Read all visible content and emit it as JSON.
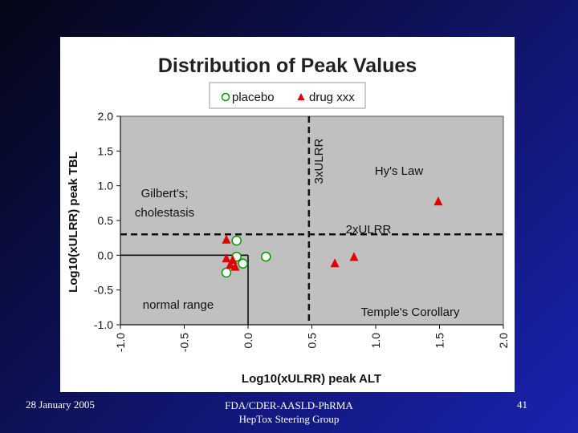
{
  "slide": {
    "footer_date": "28 January 2005",
    "footer_org_line1": "FDA/CDER-AASLD-PhRMA",
    "footer_org_line2": "HepTox Steering Group",
    "page_number": "41"
  },
  "colors": {
    "plot_bg": "#c0c0c0",
    "placebo": "#009900",
    "drug": "#e00000"
  },
  "chart_data": {
    "type": "scatter",
    "title": "Distribution of Peak Values",
    "xlabel": "Log10(xULRR) peak ALT",
    "ylabel": "Log10(xULRR) peak TBL",
    "xlim": [
      -1.0,
      2.0
    ],
    "ylim": [
      -1.0,
      2.0
    ],
    "xticks": [
      "-1.0",
      "-0.5",
      "0.0",
      "0.5",
      "1.0",
      "1.5",
      "2.0"
    ],
    "yticks": [
      "2.0",
      "1.5",
      "1.0",
      "0.5",
      "0.0",
      "-0.5",
      "-1.0"
    ],
    "grid": false,
    "legend_position": "top",
    "series": [
      {
        "name": "placebo",
        "marker": "circle",
        "points": [
          {
            "x": -0.09,
            "y": 0.21
          },
          {
            "x": -0.09,
            "y": -0.02
          },
          {
            "x": -0.04,
            "y": -0.12
          },
          {
            "x": -0.17,
            "y": -0.25
          },
          {
            "x": 0.14,
            "y": -0.02
          }
        ]
      },
      {
        "name": "drug xxx",
        "marker": "triangle",
        "points": [
          {
            "x": -0.17,
            "y": 0.22
          },
          {
            "x": -0.17,
            "y": -0.05
          },
          {
            "x": -0.12,
            "y": -0.07
          },
          {
            "x": -0.14,
            "y": -0.14
          },
          {
            "x": -0.1,
            "y": -0.17
          },
          {
            "x": 0.68,
            "y": -0.12
          },
          {
            "x": 0.83,
            "y": -0.03
          },
          {
            "x": 1.49,
            "y": 0.77
          }
        ]
      }
    ],
    "reference_lines": {
      "vertical_x": 0.477,
      "vertical_label": "3xULRR",
      "horizontal_y": 0.301,
      "horizontal_label": "2xULRR"
    },
    "region_labels": {
      "hys_law": "Hy's Law",
      "gilberts_line1": "Gilbert's;",
      "gilberts_line2": "cholestasis",
      "normal_range": "normal range",
      "temples_corollary": "Temple's Corollary"
    }
  }
}
